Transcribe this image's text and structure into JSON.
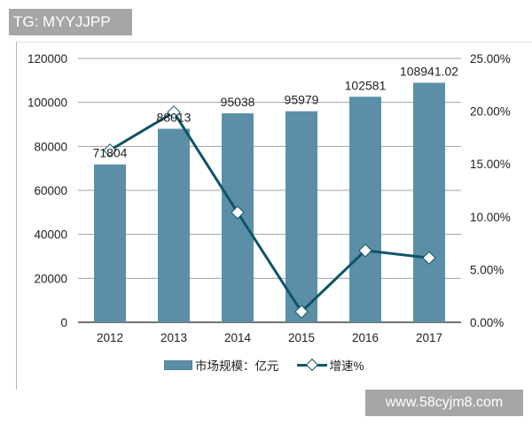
{
  "watermark_top": "TG: MYYJJPP",
  "watermark_bottom": "www.58cyjm8.com",
  "colors": {
    "bar": "#5b8fa8",
    "line": "#0f5468",
    "grid": "#a0a0a0",
    "text": "#222222"
  },
  "legend": {
    "bar_label": "市场规模：亿元",
    "line_label": "增速%"
  },
  "chart_data": {
    "type": "bar+line",
    "title": "",
    "categories": [
      "2012",
      "2013",
      "2014",
      "2015",
      "2016",
      "2017"
    ],
    "series": [
      {
        "name": "市场规模：亿元",
        "type": "bar",
        "axis": "left",
        "values": [
          71804,
          88013,
          95038,
          95979,
          102581,
          108941.02
        ],
        "labels": [
          "71804",
          "88013",
          "95038",
          "95979",
          "102581",
          "108941.02"
        ]
      },
      {
        "name": "增速%",
        "type": "line",
        "axis": "right",
        "marker": "diamond",
        "values": [
          16.3,
          19.9,
          10.4,
          1.0,
          6.8,
          6.1
        ]
      }
    ],
    "y_left": {
      "ticks": [
        "0",
        "20000",
        "40000",
        "60000",
        "80000",
        "100000",
        "120000"
      ],
      "range": [
        0,
        120000
      ]
    },
    "y_right": {
      "ticks": [
        "0.00%",
        "5.00%",
        "10.00%",
        "15.00%",
        "20.00%",
        "25.00%"
      ],
      "range": [
        0,
        25
      ]
    },
    "grid": true,
    "legend_position": "bottom"
  }
}
